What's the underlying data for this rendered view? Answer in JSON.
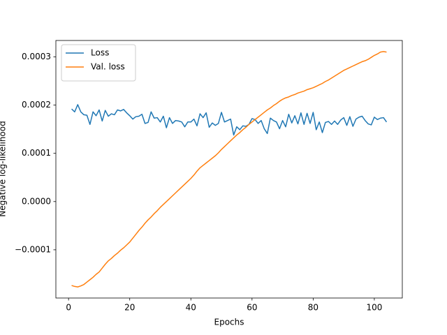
{
  "chart_data": {
    "type": "line",
    "xlabel": "Epochs",
    "ylabel": "Negative log-likelihood",
    "x": [
      1,
      2,
      3,
      4,
      5,
      6,
      7,
      8,
      9,
      10,
      11,
      12,
      13,
      14,
      15,
      16,
      17,
      18,
      19,
      20,
      21,
      22,
      23,
      24,
      25,
      26,
      27,
      28,
      29,
      30,
      31,
      32,
      33,
      34,
      35,
      36,
      37,
      38,
      39,
      40,
      41,
      42,
      43,
      44,
      45,
      46,
      47,
      48,
      49,
      50,
      51,
      52,
      53,
      54,
      55,
      56,
      57,
      58,
      59,
      60,
      61,
      62,
      63,
      64,
      65,
      66,
      67,
      68,
      69,
      70,
      71,
      72,
      73,
      74,
      75,
      76,
      77,
      78,
      79,
      80,
      81,
      82,
      83,
      84,
      85,
      86,
      87,
      88,
      89,
      90,
      91,
      92,
      93,
      94,
      95,
      96,
      97,
      98,
      99,
      100,
      101,
      102,
      103,
      104
    ],
    "series": [
      {
        "name": "Loss",
        "color": "#1f77b4",
        "values": [
          0.000192,
          0.000186,
          0.000201,
          0.000186,
          0.00018,
          0.000179,
          0.00016,
          0.000186,
          0.000178,
          0.00019,
          0.000167,
          0.000189,
          0.000177,
          0.000182,
          0.00018,
          0.00019,
          0.000188,
          0.000191,
          0.000184,
          0.000178,
          0.000171,
          0.000176,
          0.000177,
          0.000181,
          0.000162,
          0.000164,
          0.000186,
          0.000173,
          0.000174,
          0.000165,
          0.000177,
          0.000153,
          0.000174,
          0.000162,
          0.000168,
          0.000167,
          0.000165,
          0.000155,
          0.000165,
          0.000165,
          0.000171,
          0.000157,
          0.000182,
          0.000174,
          0.000184,
          0.000154,
          0.000163,
          0.000158,
          0.000162,
          0.000185,
          0.000165,
          0.000168,
          0.000171,
          0.000138,
          0.000155,
          0.000149,
          0.000157,
          0.000156,
          0.00016,
          0.000172,
          0.00017,
          0.000162,
          0.000168,
          0.000151,
          0.000141,
          0.000173,
          0.000168,
          0.000165,
          0.000151,
          0.000168,
          0.000155,
          0.000181,
          0.000163,
          0.000178,
          0.000161,
          0.000184,
          0.00016,
          0.000183,
          0.000162,
          0.000185,
          0.000149,
          0.000165,
          0.000143,
          0.000164,
          0.000166,
          0.00016,
          0.000167,
          0.00016,
          0.000169,
          0.000174,
          0.000158,
          0.000176,
          0.000156,
          0.000171,
          0.000175,
          0.000177,
          0.000168,
          0.000161,
          0.000159,
          0.000175,
          0.00017,
          0.000173,
          0.000174,
          0.000165
        ]
      },
      {
        "name": "Val. loss",
        "color": "#ff7f0e",
        "values": [
          -0.000174,
          -0.000176,
          -0.000177,
          -0.000175,
          -0.000172,
          -0.000167,
          -0.000162,
          -0.000157,
          -0.000151,
          -0.000146,
          -0.000138,
          -0.00013,
          -0.000123,
          -0.000118,
          -0.000112,
          -0.000107,
          -0.000101,
          -9.6e-05,
          -9e-05,
          -8.4e-05,
          -7.6e-05,
          -6.8e-05,
          -6e-05,
          -5.3e-05,
          -4.5e-05,
          -3.8e-05,
          -3.2e-05,
          -2.5e-05,
          -1.9e-05,
          -1.2e-05,
          -6e-06,
          0,
          6e-06,
          1.2e-05,
          1.8e-05,
          2.4e-05,
          3e-05,
          3.6e-05,
          4.2e-05,
          4.8e-05,
          5.5e-05,
          6.3e-05,
          7e-05,
          7.5e-05,
          8e-05,
          8.5e-05,
          9e-05,
          9.5e-05,
          0.000101,
          0.000108,
          0.000114,
          0.00012,
          0.000126,
          0.000132,
          0.000138,
          0.000143,
          0.000149,
          0.000154,
          0.00016,
          0.000165,
          0.00017,
          0.000175,
          0.00018,
          0.000185,
          0.00019,
          0.000194,
          0.000199,
          0.000203,
          0.000208,
          0.000212,
          0.000215,
          0.000217,
          0.00022,
          0.000222,
          0.000225,
          0.000227,
          0.000229,
          0.000232,
          0.000234,
          0.000236,
          0.000239,
          0.000242,
          0.000245,
          0.000249,
          0.000252,
          0.000256,
          0.00026,
          0.000264,
          0.000268,
          0.000272,
          0.000275,
          0.000278,
          0.000281,
          0.000284,
          0.000287,
          0.00029,
          0.000292,
          0.000295,
          0.000299,
          0.000303,
          0.000306,
          0.00031,
          0.000311,
          0.00031
        ]
      }
    ],
    "xlim": [
      -4.15,
      109.15
    ],
    "xticks": [
      0,
      20,
      40,
      60,
      80,
      100
    ],
    "ylim": [
      -0.0002,
      0.000334
    ],
    "yticks": [
      {
        "value": -0.0001,
        "label": "−0.0001"
      },
      {
        "value": 0,
        "label": "0.0000"
      },
      {
        "value": 0.0001,
        "label": "0.0001"
      },
      {
        "value": 0.0002,
        "label": "0.0002"
      },
      {
        "value": 0.0003,
        "label": "0.0003"
      }
    ],
    "legend": "upper left",
    "grid": false
  }
}
